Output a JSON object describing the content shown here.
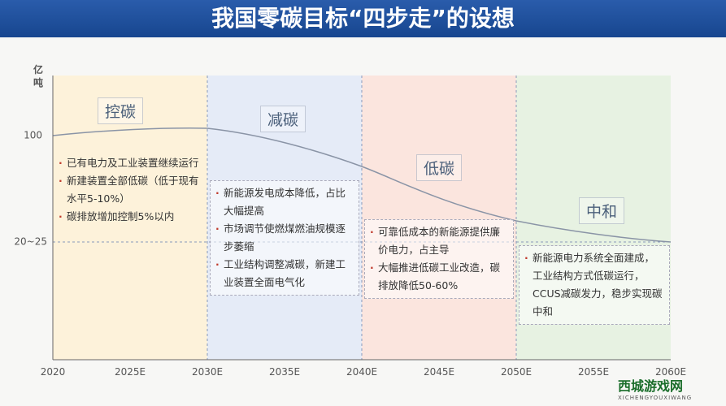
{
  "title": "我国零碳目标“四步走”的设想",
  "unit": "亿吨",
  "y_labels": [
    "100",
    "20~25"
  ],
  "x_labels": [
    "2020",
    "2025E",
    "2030E",
    "2035E",
    "2040E",
    "2045E",
    "2050E",
    "2055E",
    "2060E"
  ],
  "phases": [
    {
      "name": "控碳",
      "bullets": [
        "已有电力及工业装置继续运行",
        "新建装置全部低碳（低于现有水平5-10%）",
        "碳排放增加控制5%以内"
      ]
    },
    {
      "name": "减碳",
      "bullets": [
        "新能源发电成本降低，占比大幅提高",
        "市场调节使燃煤燃油规模逐步萎缩",
        "工业结构调整减碳，新建工业装置全面电气化"
      ]
    },
    {
      "name": "低碳",
      "bullets": [
        "可靠低成本的新能源提供廉价电力，占主导",
        "大幅推进低碳工业改造，碳排放降低50-60%"
      ]
    },
    {
      "name": "中和",
      "bullets": [
        "新能源电力系统全面建成，工业结构方式低碳运行，CCUS减碳发力，稳步实现碳中和"
      ]
    }
  ],
  "logo": {
    "name": "西城游戏网",
    "sub": "XICHENGYOUXIWANG"
  }
}
